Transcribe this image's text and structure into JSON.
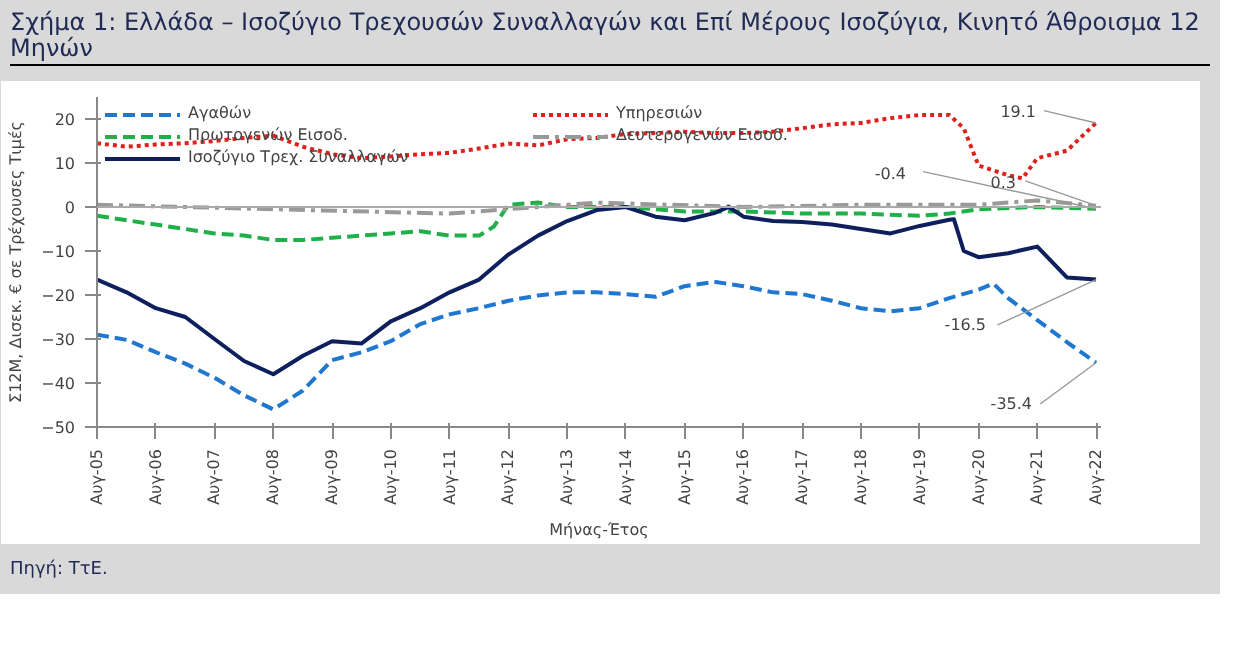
{
  "chart_data": {
    "type": "line",
    "title": "Σχήμα 1: Ελλάδα – Ισοζύγιο Τρεχουσών Συναλλαγών και Επί Μέρους Ισοζύγια, Κινητό Άθροισμα 12 Μηνών",
    "xlabel": "Μήνας-Έτος",
    "ylabel": "Σ12Μ, Δισεκ. € σε Τρέχουσες Τιμές",
    "xlim": [
      "2005-08",
      "2022-09"
    ],
    "ylim": [
      -50,
      25
    ],
    "xticks": [
      {
        "value": "2005-08",
        "label": "Αυγ-05"
      },
      {
        "value": "2006-08",
        "label": "Αυγ-06"
      },
      {
        "value": "2007-08",
        "label": "Αυγ-07"
      },
      {
        "value": "2008-08",
        "label": "Αυγ-08"
      },
      {
        "value": "2009-08",
        "label": "Αυγ-09"
      },
      {
        "value": "2010-08",
        "label": "Αυγ-10"
      },
      {
        "value": "2011-08",
        "label": "Αυγ-11"
      },
      {
        "value": "2012-08",
        "label": "Αυγ-12"
      },
      {
        "value": "2013-08",
        "label": "Αυγ-13"
      },
      {
        "value": "2014-08",
        "label": "Αυγ-14"
      },
      {
        "value": "2015-08",
        "label": "Αυγ-15"
      },
      {
        "value": "2016-08",
        "label": "Αυγ-16"
      },
      {
        "value": "2017-08",
        "label": "Αυγ-17"
      },
      {
        "value": "2018-08",
        "label": "Αυγ-18"
      },
      {
        "value": "2019-08",
        "label": "Αυγ-19"
      },
      {
        "value": "2020-08",
        "label": "Αυγ-20"
      },
      {
        "value": "2021-08",
        "label": "Αυγ-21"
      },
      {
        "value": "2022-08",
        "label": "Αυγ-22"
      }
    ],
    "yticks": [
      -50,
      -40,
      -30,
      -20,
      -10,
      0,
      10,
      20
    ],
    "grid": false,
    "legend": "top left",
    "ref_lines": [
      {
        "axis": "y",
        "value": 0,
        "color": "#aaaaaa"
      }
    ],
    "series": [
      {
        "name": "Αγαθών",
        "color": "#1f77d0",
        "line_style": "dashed",
        "x": [
          "2005-08",
          "2006-02",
          "2006-08",
          "2007-02",
          "2007-08",
          "2008-02",
          "2008-08",
          "2009-02",
          "2009-08",
          "2010-02",
          "2010-08",
          "2011-02",
          "2011-08",
          "2012-02",
          "2012-08",
          "2013-02",
          "2013-08",
          "2014-02",
          "2014-08",
          "2015-02",
          "2015-08",
          "2016-02",
          "2016-08",
          "2017-02",
          "2017-08",
          "2018-02",
          "2018-08",
          "2019-02",
          "2019-08",
          "2020-02",
          "2020-08",
          "2020-11",
          "2021-02",
          "2021-08",
          "2022-02",
          "2022-08"
        ],
        "values": [
          -29,
          -30.2,
          -33,
          -35.6,
          -38.8,
          -42.8,
          -46,
          -41.7,
          -34.8,
          -33,
          -30.5,
          -26.6,
          -24.4,
          -23,
          -21.3,
          -20.1,
          -19.4,
          -19.4,
          -19.8,
          -20.4,
          -18,
          -17,
          -18,
          -19.4,
          -19.8,
          -21.3,
          -23,
          -23.7,
          -23,
          -20.7,
          -18.8,
          -17.4,
          -20.7,
          -25.7,
          -30.7,
          -35.4
        ]
      },
      {
        "name": "Υπηρεσιών",
        "color": "#e0201b",
        "line_style": "dotted",
        "x": [
          "2005-08",
          "2006-02",
          "2006-08",
          "2007-02",
          "2007-08",
          "2008-02",
          "2008-08",
          "2009-02",
          "2009-08",
          "2010-02",
          "2010-08",
          "2011-02",
          "2011-08",
          "2012-02",
          "2012-08",
          "2013-02",
          "2013-08",
          "2014-02",
          "2014-08",
          "2015-02",
          "2015-08",
          "2016-02",
          "2016-08",
          "2017-02",
          "2017-08",
          "2018-02",
          "2018-08",
          "2019-02",
          "2019-08",
          "2020-02",
          "2020-05",
          "2020-08",
          "2021-02",
          "2021-05",
          "2021-08",
          "2022-02",
          "2022-08"
        ],
        "values": [
          14.5,
          13.7,
          14.2,
          14.5,
          15,
          15.7,
          16.2,
          13.7,
          12,
          11.1,
          11.5,
          12,
          12.3,
          13.3,
          14.4,
          14,
          15.4,
          15.7,
          16.6,
          16.8,
          17.1,
          16.8,
          16.8,
          17.1,
          17.9,
          18.8,
          19.1,
          20.2,
          20.9,
          20.9,
          17.9,
          9.4,
          7.2,
          6.5,
          11.1,
          12.8,
          19.1
        ]
      },
      {
        "name": "Πρωτογενών Εισοδ.",
        "color": "#1fb04a",
        "line_style": "dashed",
        "x": [
          "2005-08",
          "2006-08",
          "2007-08",
          "2008-02",
          "2008-08",
          "2009-02",
          "2009-08",
          "2010-02",
          "2010-08",
          "2011-02",
          "2011-08",
          "2012-02",
          "2012-05",
          "2012-08",
          "2013-02",
          "2013-08",
          "2014-08",
          "2015-08",
          "2016-08",
          "2017-08",
          "2018-08",
          "2019-08",
          "2020-02",
          "2020-08",
          "2021-08",
          "2022-08"
        ],
        "values": [
          -2,
          -4,
          -6,
          -6.5,
          -7.5,
          -7.5,
          -7,
          -6.5,
          -6,
          -5.5,
          -6.5,
          -6.5,
          -4.5,
          0.5,
          1,
          0,
          0,
          -1,
          -1,
          -1.5,
          -1.5,
          -2,
          -1.5,
          -0.5,
          0,
          -0.4
        ]
      },
      {
        "name": "Δευτερογενών Εισοδ.",
        "color": "#999999",
        "line_style": "dashdot",
        "x": [
          "2005-08",
          "2008-08",
          "2011-08",
          "2012-08",
          "2014-02",
          "2016-08",
          "2018-08",
          "2020-08",
          "2021-08",
          "2022-08"
        ],
        "values": [
          0.5,
          -0.5,
          -1.5,
          -0.5,
          1,
          0,
          0.5,
          0.5,
          1.5,
          0.3
        ]
      },
      {
        "name": "Ισοζύγιο Τρεχ. Συναλλαγών",
        "color": "#0d1f5c",
        "line_style": "solid",
        "x": [
          "2005-08",
          "2006-02",
          "2006-08",
          "2007-02",
          "2007-08",
          "2008-02",
          "2008-08",
          "2009-02",
          "2009-08",
          "2010-02",
          "2010-08",
          "2011-02",
          "2011-08",
          "2012-02",
          "2012-08",
          "2013-02",
          "2013-08",
          "2014-02",
          "2014-08",
          "2015-02",
          "2015-08",
          "2016-02",
          "2016-05",
          "2016-08",
          "2017-02",
          "2017-08",
          "2018-02",
          "2018-08",
          "2019-02",
          "2019-08",
          "2020-02",
          "2020-03",
          "2020-05",
          "2020-08",
          "2021-02",
          "2021-08",
          "2022-02",
          "2022-08"
        ],
        "values": [
          -16.5,
          -19.4,
          -23,
          -25,
          -30,
          -35,
          -38,
          -33.8,
          -30.5,
          -31,
          -26,
          -23,
          -19.4,
          -16.5,
          -10.8,
          -6.5,
          -3.2,
          -0.7,
          0,
          -2.2,
          -3,
          -1.4,
          0,
          -2.2,
          -3.2,
          -3.4,
          -4,
          -5,
          -6,
          -4.3,
          -2.9,
          -2.8,
          -10,
          -11.4,
          -10.5,
          -9,
          -16,
          -16.5
        ]
      }
    ],
    "annotations": [
      {
        "text": "19.1",
        "x": "2022-08",
        "y": 19.1
      },
      {
        "text": "0.3",
        "x": "2022-08",
        "y": 0.3
      },
      {
        "text": "-0.4",
        "x": "2022-08",
        "y": -0.4
      },
      {
        "text": "-16.5",
        "x": "2022-08",
        "y": -16.5
      },
      {
        "text": "-35.4",
        "x": "2022-08",
        "y": -35.4
      },
      "Πηγή: ΤτΕ."
    ]
  }
}
